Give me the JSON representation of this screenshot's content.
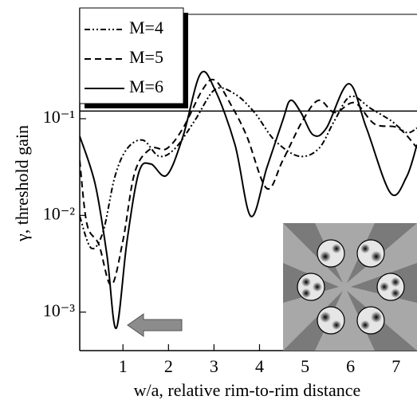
{
  "chart_data": {
    "type": "line",
    "y_label": "γ, threshold gain",
    "x_label": "w/a, relative rim-to-rim distance",
    "xlim": [
      0.05,
      7.46
    ],
    "xticks": [
      1,
      2,
      3,
      4,
      5,
      6,
      7
    ],
    "ylim": [
      0.0004,
      1.2
    ],
    "yticks": [
      {
        "value": 0.001,
        "label": "10⁻³"
      },
      {
        "value": 0.01,
        "label": "10⁻²"
      },
      {
        "value": 0.1,
        "label": "10⁻¹"
      }
    ],
    "log_y": true,
    "hline": 0.12,
    "legend": "upper left",
    "series": [
      {
        "name": "M=4",
        "color": "#000000",
        "dash": "dash-dot-dot",
        "x": [
          0.05,
          0.3,
          0.56,
          0.82,
          1.09,
          1.44,
          1.79,
          2.14,
          2.58,
          3.02,
          3.46,
          3.89,
          4.33,
          4.86,
          5.3,
          5.65,
          6.0,
          6.44,
          6.88,
          7.23,
          7.46
        ],
        "values": [
          0.0098,
          0.0046,
          0.0067,
          0.025,
          0.049,
          0.06,
          0.041,
          0.049,
          0.096,
          0.2,
          0.18,
          0.116,
          0.06,
          0.041,
          0.049,
          0.096,
          0.17,
          0.128,
          0.096,
          0.072,
          0.08
        ]
      },
      {
        "name": "M=5",
        "color": "#000000",
        "dash": "dash",
        "x": [
          0.05,
          0.21,
          0.47,
          0.74,
          1.0,
          1.26,
          1.61,
          1.96,
          2.32,
          2.75,
          3.02,
          3.37,
          3.72,
          4.16,
          4.51,
          4.95,
          5.3,
          5.65,
          6.09,
          6.53,
          7.05,
          7.46
        ],
        "values": [
          0.037,
          0.0081,
          0.005,
          0.0019,
          0.0055,
          0.028,
          0.049,
          0.049,
          0.08,
          0.2,
          0.25,
          0.14,
          0.066,
          0.019,
          0.037,
          0.096,
          0.155,
          0.116,
          0.146,
          0.088,
          0.08,
          0.05
        ]
      },
      {
        "name": "M=6",
        "color": "#000000",
        "dash": "solid",
        "x": [
          0.05,
          0.39,
          0.65,
          0.85,
          1.09,
          1.35,
          1.61,
          1.96,
          2.32,
          2.7,
          3.02,
          3.46,
          3.81,
          4.16,
          4.51,
          4.68,
          4.91,
          5.18,
          5.47,
          5.96,
          6.35,
          6.88,
          7.23,
          7.46
        ],
        "values": [
          0.066,
          0.021,
          0.0038,
          0.00068,
          0.0055,
          0.028,
          0.034,
          0.026,
          0.066,
          0.29,
          0.2,
          0.054,
          0.0098,
          0.031,
          0.096,
          0.155,
          0.116,
          0.068,
          0.08,
          0.23,
          0.08,
          0.017,
          0.025,
          0.054
        ]
      }
    ]
  }
}
